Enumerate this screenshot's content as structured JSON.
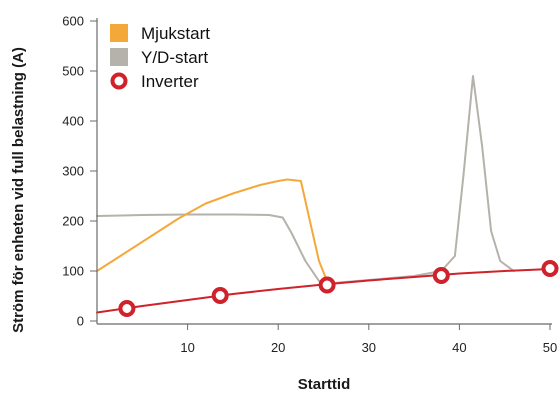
{
  "chart_data": {
    "type": "line",
    "xlabel": "Starttid",
    "ylabel": "Ström för enheten vid full belastning (A)",
    "xlim": [
      0,
      50
    ],
    "ylim": [
      0,
      600
    ],
    "x_ticks": [
      "10",
      "20",
      "30",
      "40",
      "50"
    ],
    "y_ticks": [
      "0",
      "100",
      "200",
      "300",
      "400",
      "500",
      "600"
    ],
    "grid": false,
    "legend_position": "top-left",
    "series": [
      {
        "name": "Mjukstart",
        "color": "#f5a83a",
        "marker": "square",
        "x": [
          0,
          3,
          6,
          9,
          12,
          15,
          18,
          20,
          21,
          22.5,
          23.5,
          24.5,
          25.5,
          26
        ],
        "y": [
          100,
          135,
          170,
          205,
          235,
          255,
          272,
          280,
          283,
          280,
          200,
          120,
          75,
          73
        ]
      },
      {
        "name": "Y/D-start",
        "color": "#b5b2ab",
        "marker": "square",
        "x": [
          0,
          5,
          10,
          15,
          19,
          20.5,
          21.5,
          23,
          24.5,
          25.5,
          30,
          35,
          38,
          39.5,
          40.5,
          41.5,
          42.5,
          43.5,
          44.5,
          46
        ],
        "y": [
          210,
          212,
          213,
          213,
          212,
          207,
          175,
          120,
          80,
          75,
          82,
          90,
          100,
          130,
          300,
          490,
          350,
          180,
          120,
          100
        ]
      },
      {
        "name": "Inverter",
        "color": "#d0222b",
        "marker": "ring",
        "x": [
          0,
          5,
          10,
          15,
          20,
          25,
          30,
          35,
          40,
          45,
          50
        ],
        "y": [
          17,
          30,
          42,
          54,
          64,
          73,
          81,
          88,
          95,
          100,
          104
        ],
        "markers_x": [
          3.3,
          13.6,
          25.4,
          38,
          50
        ],
        "markers_y": [
          25,
          51,
          72,
          91,
          105
        ]
      }
    ]
  }
}
